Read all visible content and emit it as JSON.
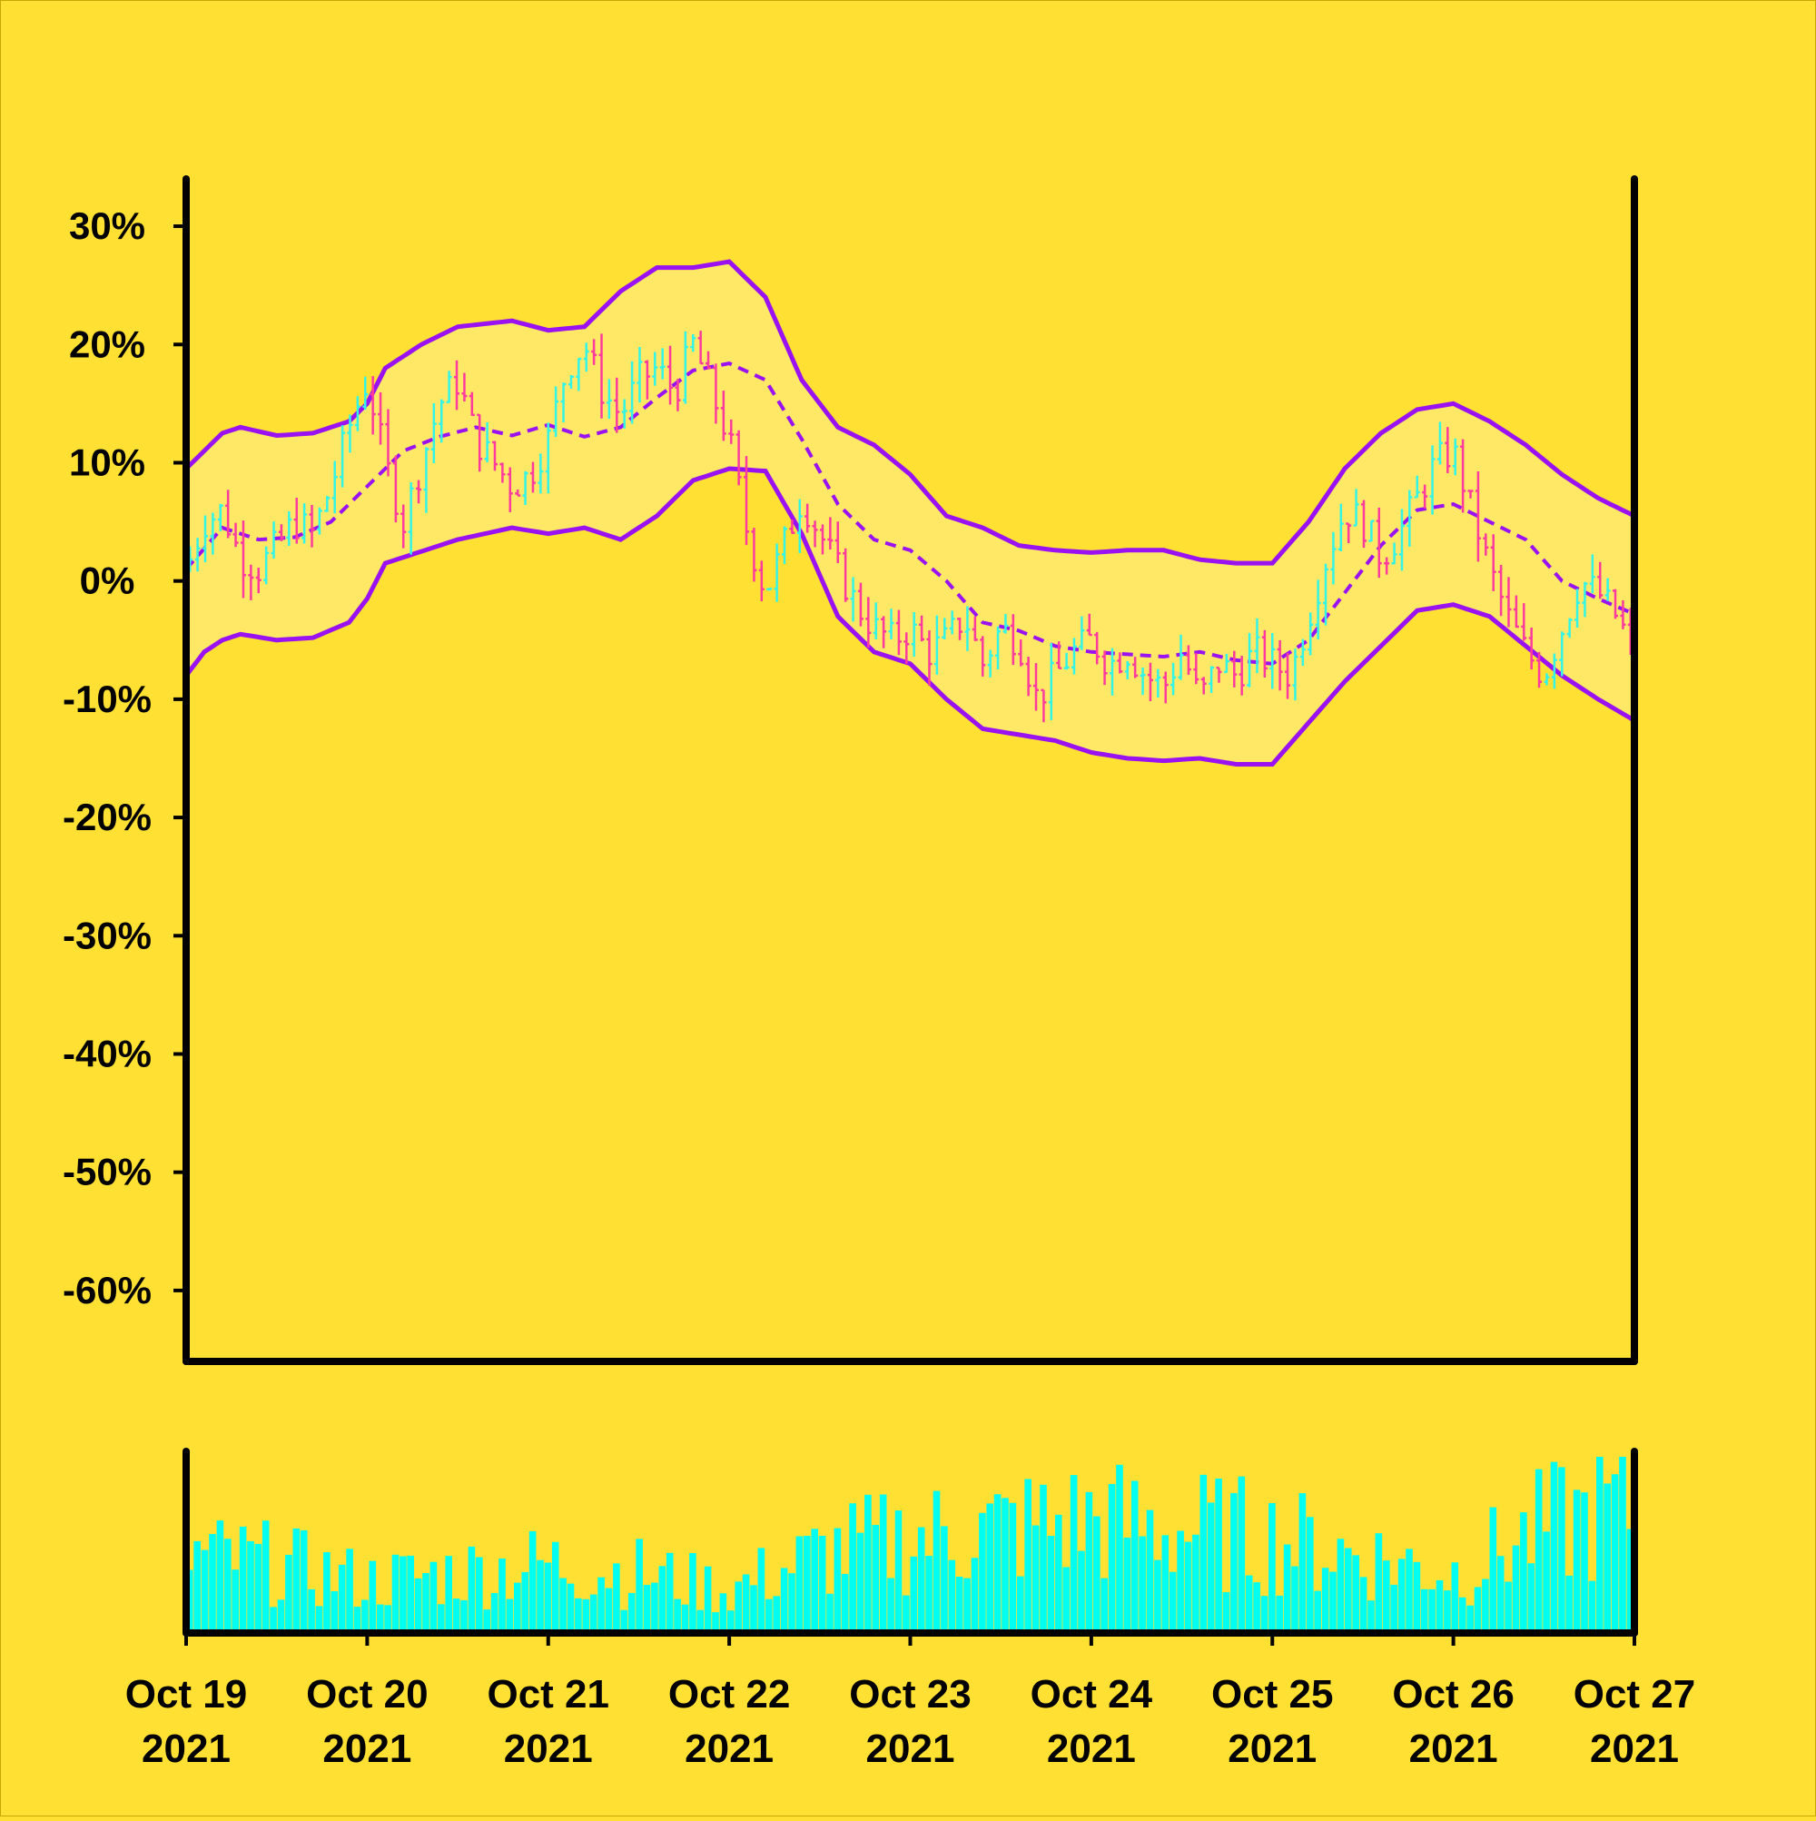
{
  "colors": {
    "background": "#FFE033",
    "band_fill": "#FFE866",
    "band_line": "#9B12F0",
    "up": "#33F5E6",
    "down": "#FF3C9E",
    "volume": "#00FFF0",
    "axis": "#000000"
  },
  "chart_data": {
    "type": "ohlc",
    "title": "",
    "xlabel": "",
    "ylabel": "",
    "ylim": [
      -66,
      34
    ],
    "grid": false,
    "y_ticks": [
      30,
      20,
      10,
      0,
      -10,
      -20,
      -30,
      -40,
      -50,
      -60
    ],
    "y_tick_labels": [
      "30%",
      "20%",
      "10%",
      "0%",
      "-10%",
      "-20%",
      "-30%",
      "-40%",
      "-50%",
      "-60%"
    ],
    "x_range": [
      "2021-10-19",
      "2021-10-27"
    ],
    "x_ticks": [
      "2021-10-19",
      "2021-10-20",
      "2021-10-21",
      "2021-10-22",
      "2021-10-23",
      "2021-10-24",
      "2021-10-25",
      "2021-10-26",
      "2021-10-27"
    ],
    "x_tick_labels": [
      {
        "month_day": "Oct 19",
        "year": "2021"
      },
      {
        "month_day": "Oct 20",
        "year": "2021"
      },
      {
        "month_day": "Oct 21",
        "year": "2021"
      },
      {
        "month_day": "Oct 22",
        "year": "2021"
      },
      {
        "month_day": "Oct 23",
        "year": "2021"
      },
      {
        "month_day": "Oct 24",
        "year": "2021"
      },
      {
        "month_day": "Oct 25",
        "year": "2021"
      },
      {
        "month_day": "Oct 26",
        "year": "2021"
      },
      {
        "month_day": "Oct 27",
        "year": "2021"
      }
    ],
    "price_series": {
      "description": "closing level (%) sampled at day fractions; OHLC bars generated from this series",
      "day": [
        0,
        0.1,
        0.2,
        0.3,
        0.4,
        0.5,
        0.6,
        0.7,
        0.8,
        0.9,
        1.0,
        1.1,
        1.2,
        1.3,
        1.4,
        1.5,
        1.6,
        1.7,
        1.8,
        1.9,
        2.0,
        2.1,
        2.2,
        2.3,
        2.4,
        2.5,
        2.6,
        2.7,
        2.8,
        2.9,
        3.0,
        3.1,
        3.2,
        3.3,
        3.4,
        3.5,
        3.6,
        3.7,
        3.8,
        3.9,
        4.0,
        4.1,
        4.2,
        4.3,
        4.4,
        4.5,
        4.6,
        4.7,
        4.8,
        4.9,
        5.0,
        5.1,
        5.2,
        5.3,
        5.4,
        5.5,
        5.6,
        5.7,
        5.8,
        5.9,
        6.0,
        6.1,
        6.2,
        6.3,
        6.4,
        6.5,
        6.6,
        6.7,
        6.8,
        6.9,
        7.0,
        7.1,
        7.2,
        7.3,
        7.4,
        7.5,
        7.6,
        7.7,
        7.8,
        7.9,
        8.0
      ],
      "close": [
        1,
        5,
        6,
        2,
        1,
        3,
        5,
        4,
        8,
        13,
        17,
        10,
        5,
        10,
        15,
        17,
        12,
        10,
        8,
        9,
        12,
        18,
        20,
        16,
        14,
        17,
        18,
        16,
        20,
        16,
        12,
        4,
        -1,
        3,
        7,
        4,
        1,
        -2,
        -4,
        -5,
        -4,
        -6,
        -5,
        -3,
        -7,
        -4,
        -5,
        -10,
        -8,
        -6,
        -5,
        -7,
        -6,
        -8,
        -9,
        -6,
        -10,
        -7,
        -8,
        -6,
        -7,
        -8,
        -3,
        2,
        6,
        5,
        2,
        4,
        7,
        10,
        11,
        6,
        1,
        -3,
        -6,
        -8,
        -4,
        0,
        -1,
        -3,
        -6
      ]
    },
    "bands": {
      "upper_day": [
        0,
        0.1,
        0.2,
        0.3,
        0.5,
        0.7,
        0.9,
        1.0,
        1.1,
        1.3,
        1.5,
        1.8,
        2.0,
        2.2,
        2.4,
        2.6,
        2.8,
        3.0,
        3.2,
        3.4,
        3.6,
        3.8,
        4.0,
        4.2,
        4.4,
        4.6,
        4.8,
        5.0,
        5.2,
        5.4,
        5.6,
        5.8,
        6.0,
        6.2,
        6.4,
        6.6,
        6.8,
        7.0,
        7.2,
        7.4,
        7.6,
        7.8,
        8.0
      ],
      "upper": [
        9.5,
        11,
        12.5,
        13,
        12.3,
        12.5,
        13.5,
        15,
        18,
        20,
        21.5,
        22,
        21.2,
        21.5,
        24.5,
        26.5,
        26.5,
        27,
        24,
        17,
        13,
        11.5,
        9,
        5.5,
        4.5,
        3,
        2.6,
        2.4,
        2.6,
        2.6,
        1.8,
        1.5,
        1.5,
        5,
        9.5,
        12.5,
        14.5,
        15,
        13.5,
        11.5,
        9,
        7,
        5.5
      ],
      "middle_day": [
        0,
        0.2,
        0.4,
        0.6,
        0.8,
        1.0,
        1.2,
        1.4,
        1.6,
        1.8,
        2.0,
        2.2,
        2.4,
        2.6,
        2.8,
        3.0,
        3.2,
        3.4,
        3.6,
        3.8,
        4.0,
        4.2,
        4.4,
        4.6,
        4.8,
        5.0,
        5.2,
        5.4,
        5.6,
        5.8,
        6.0,
        6.2,
        6.4,
        6.6,
        6.8,
        7.0,
        7.2,
        7.4,
        7.6,
        7.8,
        8.0
      ],
      "middle": [
        1,
        4.5,
        3.5,
        3.7,
        5,
        8,
        11,
        12.2,
        13,
        12.3,
        13.2,
        12.2,
        13,
        15.5,
        17.8,
        18.4,
        17,
        12,
        6.5,
        3.5,
        2.6,
        0,
        -3.5,
        -4.2,
        -5.5,
        -6,
        -6.2,
        -6.4,
        -6,
        -6.7,
        -7,
        -5,
        -1,
        3,
        6,
        6.5,
        5,
        3.5,
        0,
        -1.5,
        -2.8
      ],
      "lower_day": [
        0,
        0.1,
        0.2,
        0.3,
        0.5,
        0.7,
        0.9,
        1.0,
        1.1,
        1.3,
        1.5,
        1.8,
        2.0,
        2.2,
        2.4,
        2.6,
        2.8,
        3.0,
        3.2,
        3.4,
        3.6,
        3.8,
        4.0,
        4.2,
        4.4,
        4.6,
        4.8,
        5.0,
        5.2,
        5.4,
        5.6,
        5.8,
        6.0,
        6.2,
        6.4,
        6.6,
        6.8,
        7.0,
        7.2,
        7.4,
        7.6,
        7.8,
        8.0
      ],
      "lower": [
        -8,
        -6,
        -5,
        -4.5,
        -5,
        -4.8,
        -3.5,
        -1.5,
        1.5,
        2.5,
        3.5,
        4.5,
        4,
        4.5,
        3.5,
        5.5,
        8.5,
        9.5,
        9.3,
        4,
        -3,
        -6,
        -7,
        -10,
        -12.5,
        -13,
        -13.5,
        -14.5,
        -15,
        -15.2,
        -15,
        -15.5,
        -15.5,
        -12,
        -8.5,
        -5.5,
        -2.5,
        -2,
        -3,
        -5.5,
        -8,
        -10,
        -11.8
      ]
    },
    "volume": {
      "description": "relative volume (0–1) sampled at day fractions; individual bars jittered around this envelope",
      "day": [
        0,
        0.5,
        1.0,
        1.5,
        2.0,
        2.5,
        3.0,
        3.5,
        4.0,
        4.5,
        5.0,
        5.5,
        6.0,
        6.5,
        7.0,
        7.5,
        8.0
      ],
      "level": [
        0.45,
        0.4,
        0.3,
        0.35,
        0.4,
        0.35,
        0.25,
        0.45,
        0.55,
        0.6,
        0.65,
        0.6,
        0.55,
        0.45,
        0.35,
        0.6,
        0.75
      ]
    }
  }
}
